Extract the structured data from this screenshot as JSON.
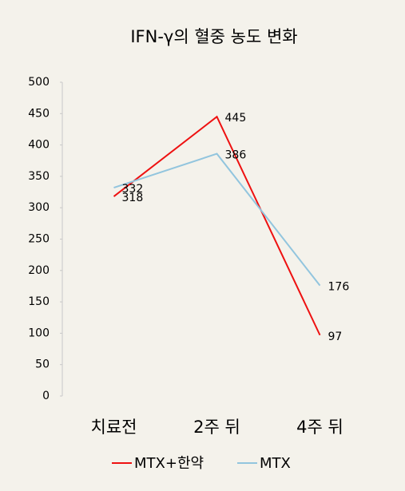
{
  "chart_data": {
    "type": "line",
    "title": "IFN-γ의 혈중 농도 변화",
    "categories": [
      "치료전",
      "2주 뒤",
      "4주 뒤"
    ],
    "series": [
      {
        "name": "MTX+한약",
        "color": "#ee1111",
        "values": [
          318,
          445,
          97
        ]
      },
      {
        "name": "MTX",
        "color": "#92c5de",
        "values": [
          332,
          386,
          176
        ]
      }
    ],
    "ylim": [
      0,
      500
    ],
    "yticks": [
      0,
      50,
      100,
      150,
      200,
      250,
      300,
      350,
      400,
      450,
      500
    ]
  }
}
